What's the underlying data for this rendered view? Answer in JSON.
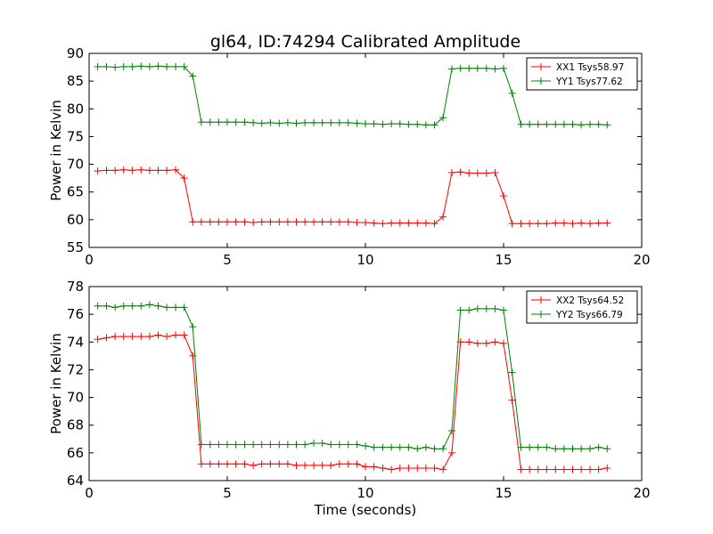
{
  "title": "gl64, ID:74294 Calibrated Amplitude",
  "chart_data": [
    {
      "type": "line",
      "ylabel": "Power in Kelvin",
      "xlabel": "",
      "xlim": [
        0,
        20
      ],
      "ylim": [
        55,
        90
      ],
      "xticks": [
        "0",
        "5",
        "10",
        "15",
        "20"
      ],
      "yticks": [
        "55",
        "60",
        "65",
        "70",
        "75",
        "80",
        "85",
        "90"
      ],
      "grid": false,
      "legend_position": "top-right",
      "x": [
        0.31,
        0.63,
        0.94,
        1.25,
        1.56,
        1.88,
        2.19,
        2.5,
        2.81,
        3.13,
        3.44,
        3.75,
        4.06,
        4.38,
        4.69,
        5.0,
        5.31,
        5.63,
        5.94,
        6.25,
        6.56,
        6.88,
        7.19,
        7.5,
        7.81,
        8.13,
        8.44,
        8.75,
        9.06,
        9.38,
        9.69,
        10.0,
        10.31,
        10.63,
        10.94,
        11.25,
        11.56,
        11.88,
        12.19,
        12.5,
        12.81,
        13.13,
        13.44,
        13.75,
        14.06,
        14.38,
        14.69,
        15.0,
        15.31,
        15.63,
        15.94,
        16.25,
        16.56,
        16.88,
        17.19,
        17.5,
        17.81,
        18.13,
        18.44,
        18.75
      ],
      "series": [
        {
          "name": "XX1 Tsys58.97",
          "color": "#ff0000",
          "values": [
            68.8,
            68.9,
            68.9,
            69.0,
            68.9,
            69.0,
            68.9,
            68.9,
            68.9,
            69.0,
            67.5,
            59.6,
            59.6,
            59.6,
            59.6,
            59.6,
            59.6,
            59.6,
            59.5,
            59.6,
            59.6,
            59.6,
            59.6,
            59.6,
            59.6,
            59.6,
            59.6,
            59.6,
            59.6,
            59.6,
            59.5,
            59.5,
            59.4,
            59.3,
            59.4,
            59.4,
            59.4,
            59.4,
            59.4,
            59.3,
            60.5,
            68.5,
            68.6,
            68.4,
            68.4,
            68.4,
            68.5,
            64.3,
            59.3,
            59.3,
            59.3,
            59.3,
            59.3,
            59.4,
            59.4,
            59.3,
            59.4,
            59.3,
            59.4,
            59.4
          ]
        },
        {
          "name": "YY1 Tsys77.62",
          "color": "#008000",
          "values": [
            87.6,
            87.6,
            87.5,
            87.6,
            87.6,
            87.7,
            87.6,
            87.7,
            87.6,
            87.6,
            87.6,
            85.9,
            77.6,
            77.6,
            77.6,
            77.6,
            77.6,
            77.6,
            77.5,
            77.4,
            77.5,
            77.4,
            77.5,
            77.4,
            77.5,
            77.5,
            77.5,
            77.5,
            77.5,
            77.5,
            77.4,
            77.3,
            77.3,
            77.2,
            77.3,
            77.3,
            77.2,
            77.2,
            77.1,
            77.1,
            78.4,
            87.2,
            87.3,
            87.3,
            87.3,
            87.3,
            87.2,
            87.3,
            82.8,
            77.2,
            77.2,
            77.2,
            77.2,
            77.2,
            77.2,
            77.2,
            77.1,
            77.2,
            77.2,
            77.1
          ]
        }
      ]
    },
    {
      "type": "line",
      "ylabel": "Power in Kelvin",
      "xlabel": "Time (seconds)",
      "xlim": [
        0,
        20
      ],
      "ylim": [
        64,
        78
      ],
      "xticks": [
        "0",
        "5",
        "10",
        "15",
        "20"
      ],
      "yticks": [
        "64",
        "66",
        "68",
        "70",
        "72",
        "74",
        "76",
        "78"
      ],
      "grid": false,
      "legend_position": "top-right",
      "x": [
        0.31,
        0.63,
        0.94,
        1.25,
        1.56,
        1.88,
        2.19,
        2.5,
        2.81,
        3.13,
        3.44,
        3.75,
        4.06,
        4.38,
        4.69,
        5.0,
        5.31,
        5.63,
        5.94,
        6.25,
        6.56,
        6.88,
        7.19,
        7.5,
        7.81,
        8.13,
        8.44,
        8.75,
        9.06,
        9.38,
        9.69,
        10.0,
        10.31,
        10.63,
        10.94,
        11.25,
        11.56,
        11.88,
        12.19,
        12.5,
        12.81,
        13.13,
        13.44,
        13.75,
        14.06,
        14.38,
        14.69,
        15.0,
        15.31,
        15.63,
        15.94,
        16.25,
        16.56,
        16.88,
        17.19,
        17.5,
        17.81,
        18.13,
        18.44,
        18.75
      ],
      "series": [
        {
          "name": "XX2 Tsys64.52",
          "color": "#ff0000",
          "values": [
            74.2,
            74.3,
            74.4,
            74.4,
            74.4,
            74.4,
            74.4,
            74.5,
            74.4,
            74.5,
            74.5,
            73.0,
            65.2,
            65.2,
            65.2,
            65.2,
            65.2,
            65.2,
            65.1,
            65.2,
            65.2,
            65.2,
            65.2,
            65.1,
            65.1,
            65.1,
            65.1,
            65.1,
            65.2,
            65.2,
            65.2,
            65.0,
            65.0,
            64.9,
            64.8,
            64.9,
            64.9,
            64.9,
            64.9,
            64.9,
            64.8,
            66.0,
            74.0,
            74.0,
            73.9,
            73.9,
            74.0,
            73.9,
            69.8,
            64.8,
            64.8,
            64.8,
            64.8,
            64.8,
            64.8,
            64.8,
            64.8,
            64.8,
            64.8,
            64.9
          ]
        },
        {
          "name": "YY2 Tsys66.79",
          "color": "#008000",
          "values": [
            76.6,
            76.6,
            76.5,
            76.6,
            76.6,
            76.6,
            76.7,
            76.6,
            76.5,
            76.5,
            76.5,
            75.1,
            66.6,
            66.6,
            66.6,
            66.6,
            66.6,
            66.6,
            66.6,
            66.6,
            66.6,
            66.6,
            66.6,
            66.6,
            66.6,
            66.7,
            66.7,
            66.6,
            66.6,
            66.6,
            66.6,
            66.5,
            66.4,
            66.4,
            66.4,
            66.4,
            66.4,
            66.3,
            66.4,
            66.3,
            66.3,
            67.6,
            76.3,
            76.3,
            76.4,
            76.4,
            76.4,
            76.3,
            71.8,
            66.4,
            66.4,
            66.4,
            66.4,
            66.3,
            66.3,
            66.3,
            66.3,
            66.3,
            66.4,
            66.3
          ]
        }
      ]
    }
  ]
}
